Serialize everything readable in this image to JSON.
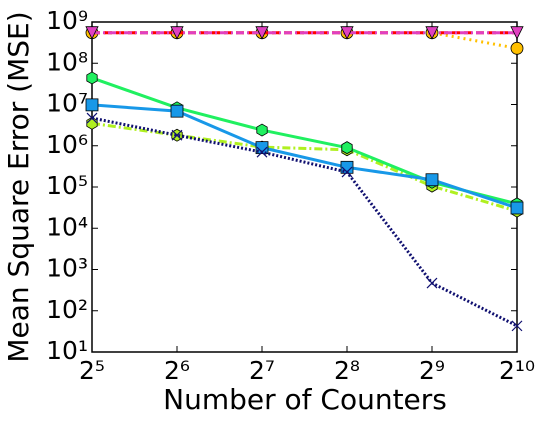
{
  "chart_data": {
    "type": "line",
    "x_label": "Number of Counters",
    "y_label": "Mean Square Error (MSE)",
    "x": [
      32,
      64,
      128,
      256,
      512,
      1024
    ],
    "xlim": [
      32,
      1024
    ],
    "xticks": [
      {
        "value": 32,
        "label": "2⁵"
      },
      {
        "value": 64,
        "label": "2⁶"
      },
      {
        "value": 128,
        "label": "2⁷"
      },
      {
        "value": 256,
        "label": "2⁸"
      },
      {
        "value": 512,
        "label": "2⁹"
      },
      {
        "value": 1024,
        "label": "2¹⁰"
      }
    ],
    "xscale": "log",
    "ylim": [
      10,
      1000000000
    ],
    "yticks": [
      {
        "value": 10,
        "label": "10¹"
      },
      {
        "value": 100,
        "label": "10²"
      },
      {
        "value": 1000,
        "label": "10³"
      },
      {
        "value": 10000,
        "label": "10⁴"
      },
      {
        "value": 100000,
        "label": "10⁵"
      },
      {
        "value": 1000000,
        "label": "10⁶"
      },
      {
        "value": 10000000,
        "label": "10⁷"
      },
      {
        "value": 100000000,
        "label": "10⁸"
      },
      {
        "value": 1000000000,
        "label": "10⁹"
      }
    ],
    "yscale": "log",
    "series": [
      {
        "color": "#ffc000",
        "dash": "2,4",
        "marker": "circle",
        "values": [
          550000000,
          550000000,
          550000000,
          550000000,
          550000000,
          230000000
        ]
      },
      {
        "color": "#ff0000",
        "dash": "8,4",
        "marker": "none",
        "values": [
          550000000,
          550000000,
          550000000,
          550000000,
          550000000,
          550000000
        ]
      },
      {
        "color": "#e040c0",
        "dash": "8,3,2,3",
        "marker": "triangle-down",
        "values": [
          550000000,
          550000000,
          550000000,
          550000000,
          550000000,
          550000000
        ]
      },
      {
        "color": "#b0f020",
        "dash": "8,3,2,3",
        "marker": "hexagon",
        "values": [
          3500000,
          1800000,
          930000,
          800000,
          105000,
          26000
        ]
      },
      {
        "color": "#20f060",
        "dash": "none",
        "marker": "hexagon",
        "values": [
          44000000,
          8300000,
          2400000,
          900000,
          130000,
          39000
        ]
      },
      {
        "color": "#1898e8",
        "dash": "none",
        "marker": "square",
        "values": [
          9800000,
          6900000,
          900000,
          300000,
          150000,
          31000
        ]
      },
      {
        "color": "#101070",
        "dash": "2,2",
        "marker": "x",
        "values": [
          4700000,
          1800000,
          700000,
          230000,
          470,
          43
        ]
      }
    ]
  }
}
